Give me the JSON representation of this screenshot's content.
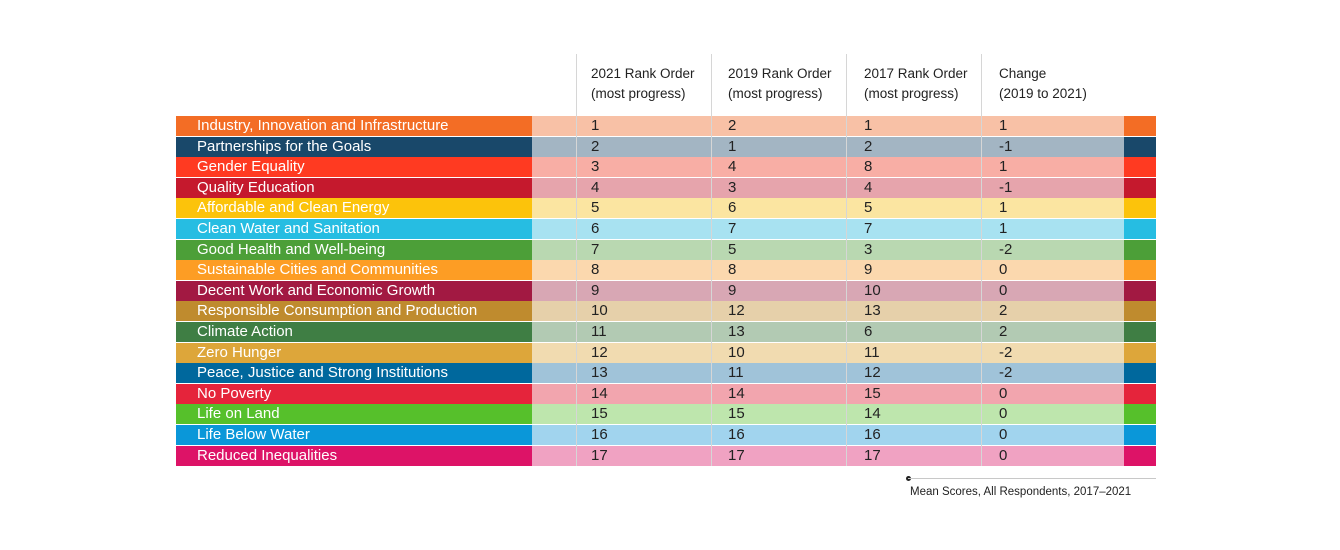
{
  "chart_data": {
    "type": "table",
    "columns": [
      {
        "key": "rank_2021",
        "label": "2021 Rank Order\n(most progress)"
      },
      {
        "key": "rank_2019",
        "label": "2019 Rank Order\n(most progress)"
      },
      {
        "key": "rank_2017",
        "label": "2017 Rank Order\n(most progress)"
      },
      {
        "key": "change",
        "label": "Change\n (2019 to 2021)"
      }
    ],
    "rows": [
      {
        "goal": "Industry, Innovation and Infrastructure",
        "color": "#F36D25",
        "tint": "#F8C1A6",
        "rank_2021": "1",
        "rank_2019": "2",
        "rank_2017": "1",
        "change": "1"
      },
      {
        "goal": "Partnerships for the Goals",
        "color": "#19486A",
        "tint": "#A3B5C3",
        "rank_2021": "2",
        "rank_2019": "1",
        "rank_2017": "2",
        "change": "-1"
      },
      {
        "goal": "Gender Equality",
        "color": "#FF3A21",
        "tint": "#F8AEA5",
        "rank_2021": "3",
        "rank_2019": "4",
        "rank_2017": "8",
        "change": "1"
      },
      {
        "goal": "Quality Education",
        "color": "#C5192D",
        "tint": "#E6A4AC",
        "rank_2021": "4",
        "rank_2019": "3",
        "rank_2017": "4",
        "change": "-1"
      },
      {
        "goal": "Affordable and Clean Energy",
        "color": "#FCC30B",
        "tint": "#FBE5A1",
        "rank_2021": "5",
        "rank_2019": "6",
        "rank_2017": "5",
        "change": "1"
      },
      {
        "goal": "Clean Water and Sanitation",
        "color": "#26BDE2",
        "tint": "#A8E2F1",
        "rank_2021": "6",
        "rank_2019": "7",
        "rank_2017": "7",
        "change": "1"
      },
      {
        "goal": "Good Health and Well-being",
        "color": "#4C9F38",
        "tint": "#B9D8B1",
        "rank_2021": "7",
        "rank_2019": "5",
        "rank_2017": "3",
        "change": "-2"
      },
      {
        "goal": "Sustainable Cities and Communities",
        "color": "#FD9D24",
        "tint": "#FBD8AE",
        "rank_2021": "8",
        "rank_2019": "8",
        "rank_2017": "9",
        "change": "0"
      },
      {
        "goal": "Decent Work and Economic Growth",
        "color": "#A21942",
        "tint": "#D8A7B4",
        "rank_2021": "9",
        "rank_2019": "9",
        "rank_2017": "10",
        "change": "0"
      },
      {
        "goal": "Responsible Consumption and Production",
        "color": "#BF8B2E",
        "tint": "#E6D0AA",
        "rank_2021": "10",
        "rank_2019": "12",
        "rank_2017": "13",
        "change": "2"
      },
      {
        "goal": "Climate Action",
        "color": "#3F7E44",
        "tint": "#B2CAB3",
        "rank_2021": "11",
        "rank_2019": "13",
        "rank_2017": "6",
        "change": "2"
      },
      {
        "goal": "Zero Hunger",
        "color": "#DDA63A",
        "tint": "#F1DBB0",
        "rank_2021": "12",
        "rank_2019": "10",
        "rank_2017": "11",
        "change": "-2"
      },
      {
        "goal": "Peace, Justice and Strong Institutions",
        "color": "#00689D",
        "tint": "#A0C3D9",
        "rank_2021": "13",
        "rank_2019": "11",
        "rank_2017": "12",
        "change": "-2"
      },
      {
        "goal": "No Poverty",
        "color": "#E5243B",
        "tint": "#F2A5AE",
        "rank_2021": "14",
        "rank_2019": "14",
        "rank_2017": "15",
        "change": "0"
      },
      {
        "goal": "Life on Land",
        "color": "#56C02B",
        "tint": "#BEE6AD",
        "rank_2021": "15",
        "rank_2019": "15",
        "rank_2017": "14",
        "change": "0"
      },
      {
        "goal": "Life Below Water",
        "color": "#0A97D9",
        "tint": "#A1D4EE",
        "rank_2021": "16",
        "rank_2019": "16",
        "rank_2017": "16",
        "change": "0"
      },
      {
        "goal": "Reduced Inequalities",
        "color": "#DD1367",
        "tint": "#F0A2C2",
        "rank_2021": "17",
        "rank_2019": "17",
        "rank_2017": "17",
        "change": "0"
      }
    ],
    "footnote": "Mean Scores, All Respondents, 2017–2021"
  }
}
